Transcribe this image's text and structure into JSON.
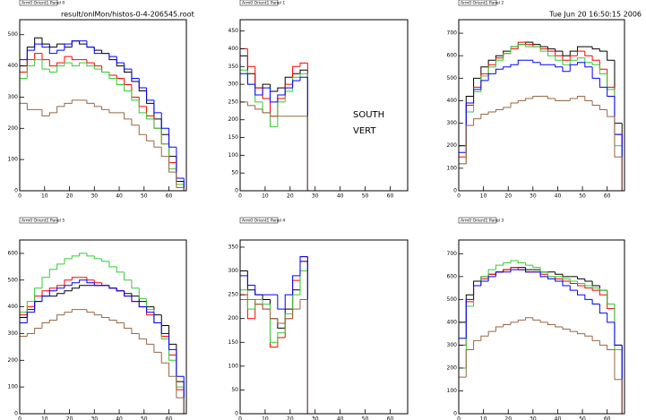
{
  "header": {
    "file": "result/onlMon/histos-0-4-206545.root",
    "timestamp": "Tue Jun 20 16:50:15 2006"
  },
  "chart_data": [
    {
      "type": "histogram",
      "title": "Arm0 Orient1 Panel 0",
      "bins": [
        0,
        3,
        6,
        9,
        12,
        15,
        18,
        21,
        24,
        27,
        30,
        33,
        36,
        39,
        42,
        45,
        48,
        51,
        54,
        57,
        60,
        63,
        66
      ],
      "xlim": [
        0,
        67
      ],
      "xticks": [
        0,
        10,
        20,
        30,
        40,
        50,
        60
      ],
      "ylim": [
        0,
        548
      ],
      "yticks": [
        0,
        100,
        200,
        300,
        400,
        500
      ],
      "series": [
        {
          "color": "#000000",
          "values": [
            400,
            460,
            490,
            470,
            460,
            470,
            460,
            480,
            470,
            460,
            450,
            440,
            420,
            400,
            380,
            350,
            320,
            280,
            230,
            180,
            110,
            30
          ]
        },
        {
          "color": "#ff0000",
          "values": [
            380,
            420,
            440,
            420,
            400,
            410,
            430,
            420,
            420,
            410,
            400,
            380,
            370,
            360,
            340,
            300,
            270,
            240,
            200,
            150,
            90,
            20
          ]
        },
        {
          "color": "#33cc33",
          "values": [
            360,
            400,
            420,
            390,
            380,
            400,
            410,
            400,
            410,
            400,
            390,
            380,
            360,
            340,
            320,
            290,
            250,
            230,
            200,
            150,
            70,
            20
          ]
        },
        {
          "color": "#0000ff",
          "values": [
            420,
            450,
            470,
            460,
            440,
            450,
            470,
            480,
            480,
            460,
            440,
            440,
            430,
            410,
            390,
            360,
            330,
            290,
            250,
            200,
            140,
            40
          ]
        },
        {
          "color": "#996644",
          "values": [
            280,
            260,
            260,
            240,
            250,
            270,
            280,
            290,
            290,
            280,
            270,
            260,
            250,
            250,
            230,
            210,
            180,
            160,
            140,
            110,
            60,
            10
          ]
        }
      ]
    },
    {
      "type": "histogram",
      "title": "Arm0 Orient1 Panel 1",
      "annotations": [
        "SOUTH",
        "VERT"
      ],
      "bins": [
        0,
        3,
        6,
        9,
        12,
        15,
        18,
        21,
        24,
        27
      ],
      "xlim": [
        0,
        67
      ],
      "xticks": [
        0,
        10,
        20,
        30,
        40,
        50,
        60
      ],
      "ylim": [
        0,
        482
      ],
      "yticks": [
        0,
        50,
        100,
        150,
        200,
        250,
        300,
        350,
        400,
        450
      ],
      "series": [
        {
          "color": "#000000",
          "values": [
            380,
            330,
            290,
            300,
            280,
            290,
            320,
            330,
            340
          ]
        },
        {
          "color": "#ff0000",
          "values": [
            400,
            350,
            290,
            260,
            210,
            260,
            300,
            350,
            360
          ]
        },
        {
          "color": "#33cc33",
          "values": [
            340,
            300,
            250,
            220,
            180,
            250,
            280,
            320,
            330
          ]
        },
        {
          "color": "#0000ff",
          "values": [
            330,
            300,
            270,
            290,
            250,
            270,
            290,
            310,
            320
          ]
        },
        {
          "color": "#996644",
          "values": [
            250,
            240,
            230,
            220,
            210,
            210,
            210,
            210,
            210
          ]
        }
      ]
    },
    {
      "type": "histogram",
      "title": "Arm0 Orient1 Panel 2",
      "bins": [
        0,
        3,
        6,
        9,
        12,
        15,
        18,
        21,
        24,
        27,
        30,
        33,
        36,
        39,
        42,
        45,
        48,
        51,
        54,
        57,
        60,
        63,
        66
      ],
      "xlim": [
        0,
        67
      ],
      "xticks": [
        0,
        10,
        20,
        30,
        40,
        50,
        60
      ],
      "ylim": [
        0,
        760
      ],
      "yticks": [
        0,
        100,
        200,
        300,
        400,
        500,
        600,
        700
      ],
      "series": [
        {
          "color": "#000000",
          "values": [
            200,
            420,
            500,
            550,
            580,
            600,
            620,
            640,
            650,
            660,
            650,
            640,
            630,
            620,
            600,
            620,
            640,
            640,
            630,
            620,
            580,
            300
          ]
        },
        {
          "color": "#ff0000",
          "values": [
            150,
            380,
            460,
            520,
            560,
            590,
            610,
            630,
            660,
            650,
            640,
            630,
            620,
            600,
            580,
            600,
            620,
            600,
            580,
            540,
            460,
            250
          ]
        },
        {
          "color": "#33cc33",
          "values": [
            120,
            350,
            440,
            510,
            550,
            580,
            610,
            640,
            650,
            640,
            640,
            620,
            600,
            580,
            560,
            580,
            590,
            570,
            560,
            520,
            450,
            200
          ]
        },
        {
          "color": "#0000ff",
          "values": [
            170,
            390,
            450,
            490,
            520,
            540,
            550,
            560,
            580,
            580,
            570,
            560,
            560,
            550,
            530,
            560,
            570,
            550,
            500,
            460,
            420,
            250
          ]
        },
        {
          "color": "#996644",
          "values": [
            120,
            290,
            320,
            340,
            350,
            360,
            370,
            390,
            400,
            410,
            420,
            420,
            410,
            400,
            400,
            410,
            420,
            400,
            380,
            360,
            330,
            150
          ]
        }
      ]
    },
    {
      "type": "histogram",
      "title": "Arm0 Orient1 Panel 5",
      "bins": [
        0,
        3,
        6,
        9,
        12,
        15,
        18,
        21,
        24,
        27,
        30,
        33,
        36,
        39,
        42,
        45,
        48,
        51,
        54,
        57,
        60,
        63,
        66
      ],
      "xlim": [
        0,
        67
      ],
      "xticks": [
        0,
        10,
        20,
        30,
        40,
        50,
        60
      ],
      "ylim": [
        0,
        650
      ],
      "yticks": [
        0,
        100,
        200,
        300,
        400,
        500,
        600
      ],
      "series": [
        {
          "color": "#000000",
          "values": [
            360,
            390,
            420,
            440,
            440,
            450,
            460,
            470,
            480,
            480,
            480,
            480,
            470,
            460,
            450,
            440,
            420,
            400,
            370,
            330,
            260,
            120
          ]
        },
        {
          "color": "#ff0000",
          "values": [
            370,
            400,
            440,
            460,
            470,
            480,
            500,
            510,
            510,
            500,
            490,
            480,
            470,
            460,
            440,
            420,
            400,
            370,
            340,
            290,
            220,
            90
          ]
        },
        {
          "color": "#33cc33",
          "values": [
            380,
            420,
            470,
            510,
            540,
            560,
            580,
            590,
            600,
            590,
            580,
            570,
            550,
            530,
            500,
            470,
            430,
            390,
            340,
            280,
            200,
            100
          ]
        },
        {
          "color": "#0000ff",
          "values": [
            340,
            380,
            420,
            440,
            460,
            470,
            480,
            490,
            500,
            490,
            480,
            480,
            470,
            460,
            440,
            420,
            400,
            380,
            340,
            300,
            240,
            140
          ]
        },
        {
          "color": "#996644",
          "values": [
            290,
            300,
            320,
            340,
            350,
            370,
            380,
            390,
            390,
            380,
            370,
            360,
            350,
            340,
            320,
            300,
            280,
            260,
            230,
            190,
            140,
            60
          ]
        }
      ]
    },
    {
      "type": "histogram",
      "title": "Arm0 Orient1 Panel 4",
      "bins": [
        0,
        3,
        6,
        9,
        12,
        15,
        18,
        21,
        24,
        27
      ],
      "xlim": [
        0,
        67
      ],
      "xticks": [
        0,
        10,
        20,
        30,
        40,
        50,
        60
      ],
      "ylim": [
        0,
        365
      ],
      "yticks": [
        0,
        50,
        100,
        150,
        200,
        250,
        300,
        350
      ],
      "series": [
        {
          "color": "#000000",
          "values": [
            300,
            260,
            250,
            240,
            200,
            180,
            220,
            260,
            320
          ]
        },
        {
          "color": "#ff0000",
          "values": [
            250,
            200,
            230,
            220,
            140,
            160,
            200,
            280,
            330
          ]
        },
        {
          "color": "#33cc33",
          "values": [
            260,
            220,
            240,
            230,
            150,
            170,
            210,
            250,
            300
          ]
        },
        {
          "color": "#0000ff",
          "values": [
            290,
            270,
            250,
            250,
            250,
            220,
            250,
            290,
            330
          ]
        },
        {
          "color": "#996644",
          "values": [
            240,
            240,
            230,
            220,
            200,
            190,
            200,
            220,
            240
          ]
        }
      ]
    },
    {
      "type": "histogram",
      "title": "Arm0 Orient1 Panel 3",
      "bins": [
        0,
        3,
        6,
        9,
        12,
        15,
        18,
        21,
        24,
        27,
        30,
        33,
        36,
        39,
        42,
        45,
        48,
        51,
        54,
        57,
        60,
        63,
        66
      ],
      "xlim": [
        0,
        67
      ],
      "xticks": [
        0,
        10,
        20,
        30,
        40,
        50,
        60
      ],
      "ylim": [
        0,
        760
      ],
      "yticks": [
        0,
        100,
        200,
        300,
        400,
        500,
        600,
        700
      ],
      "series": [
        {
          "color": "#000000",
          "values": [
            400,
            520,
            580,
            600,
            610,
            620,
            630,
            640,
            640,
            630,
            630,
            620,
            620,
            610,
            600,
            600,
            590,
            580,
            560,
            540,
            480,
            300
          ]
        },
        {
          "color": "#ff0000",
          "values": [
            300,
            490,
            560,
            590,
            610,
            620,
            630,
            640,
            630,
            620,
            620,
            610,
            600,
            590,
            580,
            570,
            560,
            550,
            540,
            520,
            460,
            280
          ]
        },
        {
          "color": "#33cc33",
          "values": [
            200,
            470,
            560,
            600,
            630,
            650,
            660,
            670,
            660,
            650,
            640,
            620,
            600,
            600,
            590,
            580,
            570,
            560,
            550,
            540,
            480,
            280
          ]
        },
        {
          "color": "#0000ff",
          "values": [
            330,
            500,
            560,
            580,
            600,
            620,
            620,
            630,
            630,
            620,
            620,
            600,
            590,
            580,
            560,
            540,
            520,
            500,
            480,
            440,
            400,
            300
          ]
        },
        {
          "color": "#996644",
          "values": [
            160,
            280,
            320,
            340,
            360,
            380,
            390,
            400,
            410,
            420,
            410,
            400,
            390,
            380,
            370,
            360,
            350,
            340,
            320,
            300,
            280,
            150
          ]
        }
      ]
    }
  ]
}
